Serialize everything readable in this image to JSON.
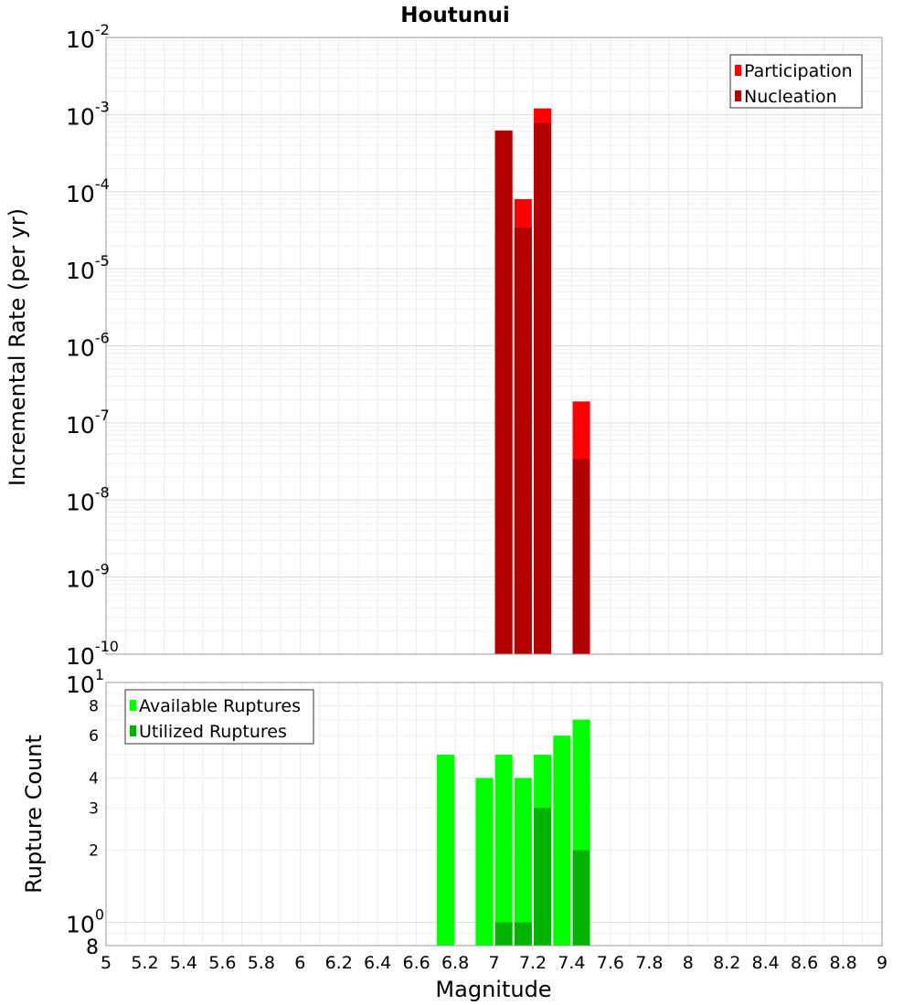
{
  "chart_data": [
    {
      "type": "bar",
      "title": "Houtunui",
      "xlabel": "",
      "ylabel": "Incremental Rate (per yr)",
      "yscale": "log",
      "xlim": [
        5,
        9
      ],
      "ylim": [
        1e-10,
        0.01
      ],
      "grid": true,
      "legend_position": "top-right",
      "y_ticks": [
        {
          "base": "10",
          "exp": "-10"
        },
        {
          "base": "10",
          "exp": "-9"
        },
        {
          "base": "10",
          "exp": "-8"
        },
        {
          "base": "10",
          "exp": "-7"
        },
        {
          "base": "10",
          "exp": "-6"
        },
        {
          "base": "10",
          "exp": "-5"
        },
        {
          "base": "10",
          "exp": "-4"
        },
        {
          "base": "10",
          "exp": "-3"
        },
        {
          "base": "10",
          "exp": "-2"
        }
      ],
      "series": [
        {
          "name": "Participation",
          "color": "#ff0000",
          "points": [
            {
              "x": 7.05,
              "y": 0.00062
            },
            {
              "x": 7.15,
              "y": 8e-05
            },
            {
              "x": 7.25,
              "y": 0.0012
            },
            {
              "x": 7.45,
              "y": 1.9e-07
            }
          ]
        },
        {
          "name": "Nucleation",
          "color": "#b30000",
          "points": [
            {
              "x": 7.05,
              "y": 0.00062
            },
            {
              "x": 7.15,
              "y": 3.4e-05
            },
            {
              "x": 7.25,
              "y": 0.00077
            },
            {
              "x": 7.45,
              "y": 3.4e-08
            }
          ]
        }
      ]
    },
    {
      "type": "bar",
      "title": "",
      "xlabel": "Magnitude",
      "ylabel": "Rupture Count",
      "yscale": "log",
      "xlim": [
        5,
        9
      ],
      "ylim": [
        0.8,
        10
      ],
      "grid": true,
      "legend_position": "top-left",
      "x_ticks": [
        "5",
        "5.2",
        "5.4",
        "5.6",
        "5.8",
        "6",
        "6.2",
        "6.4",
        "6.6",
        "6.8",
        "7",
        "7.2",
        "7.4",
        "7.6",
        "7.8",
        "8",
        "8.2",
        "8.4",
        "8.6",
        "8.8",
        "9"
      ],
      "y_major_ticks": [
        {
          "base": "10",
          "exp": "0",
          "value": 1
        },
        {
          "base": "10",
          "exp": "1",
          "value": 10
        }
      ],
      "y_minor_ticks": [
        {
          "label": "8",
          "value": 0.8
        },
        {
          "label": "2",
          "value": 2
        },
        {
          "label": "3",
          "value": 3
        },
        {
          "label": "4",
          "value": 4
        },
        {
          "label": "6",
          "value": 6
        },
        {
          "label": "8",
          "value": 8
        }
      ],
      "series": [
        {
          "name": "Available Ruptures",
          "color": "#00ff00",
          "points": [
            {
              "x": 6.75,
              "y": 5
            },
            {
              "x": 6.95,
              "y": 4
            },
            {
              "x": 7.05,
              "y": 5
            },
            {
              "x": 7.15,
              "y": 4
            },
            {
              "x": 7.25,
              "y": 5
            },
            {
              "x": 7.35,
              "y": 6
            },
            {
              "x": 7.45,
              "y": 7
            }
          ]
        },
        {
          "name": "Utilized Ruptures",
          "color": "#00b300",
          "points": [
            {
              "x": 7.05,
              "y": 1
            },
            {
              "x": 7.15,
              "y": 1
            },
            {
              "x": 7.25,
              "y": 3
            },
            {
              "x": 7.45,
              "y": 2
            }
          ]
        }
      ]
    }
  ]
}
